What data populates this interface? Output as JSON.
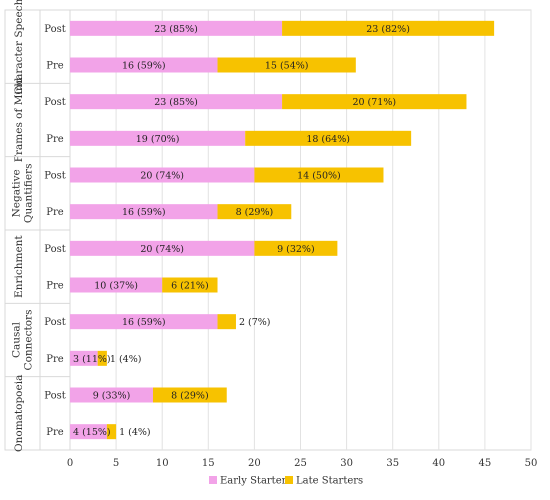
{
  "chart_data": {
    "type": "bar",
    "orientation": "horizontal",
    "stacked": true,
    "xlim": [
      0,
      50
    ],
    "xticks": [
      0,
      5,
      10,
      15,
      20,
      25,
      30,
      35,
      40,
      45,
      50
    ],
    "grid": true,
    "legend_position": "bottom",
    "colors": {
      "early": "#f2a3e8",
      "late": "#f7c200"
    },
    "groups": [
      {
        "name": "Character Speech",
        "rows": [
          {
            "label": "Post",
            "early": 23,
            "early_label": "23 (85%)",
            "late": 23,
            "late_label": "23 (82%)"
          },
          {
            "label": "Pre",
            "early": 16,
            "early_label": "16 (59%)",
            "late": 15,
            "late_label": "15 (54%)"
          }
        ]
      },
      {
        "name": "Frames of Mind",
        "rows": [
          {
            "label": "Post",
            "early": 23,
            "early_label": "23 (85%)",
            "late": 20,
            "late_label": "20 (71%)"
          },
          {
            "label": "Pre",
            "early": 19,
            "early_label": "19 (70%)",
            "late": 18,
            "late_label": "18 (64%)"
          }
        ]
      },
      {
        "name": "Negative Quantifiers",
        "rows": [
          {
            "label": "Post",
            "early": 20,
            "early_label": "20 (74%)",
            "late": 14,
            "late_label": "14 (50%)"
          },
          {
            "label": "Pre",
            "early": 16,
            "early_label": "16 (59%)",
            "late": 8,
            "late_label": "8 (29%)"
          }
        ]
      },
      {
        "name": "Enrichment",
        "rows": [
          {
            "label": "Post",
            "early": 20,
            "early_label": "20 (74%)",
            "late": 9,
            "late_label": "9 (32%)"
          },
          {
            "label": "Pre",
            "early": 10,
            "early_label": "10 (37%)",
            "late": 6,
            "late_label": "6 (21%)"
          }
        ]
      },
      {
        "name": "Causal Connectors",
        "rows": [
          {
            "label": "Post",
            "early": 16,
            "early_label": "16 (59%)",
            "late": 2,
            "late_label": "2 (7%)"
          },
          {
            "label": "Pre",
            "early": 3,
            "early_label": "3 (11%)",
            "late": 1,
            "late_label": "1 (4%)"
          }
        ]
      },
      {
        "name": "Onomatopoeia",
        "rows": [
          {
            "label": "Post",
            "early": 9,
            "early_label": "9 (33%)",
            "late": 8,
            "late_label": "8 (29%)"
          },
          {
            "label": "Pre",
            "early": 4,
            "early_label": "4 (15%)",
            "late": 1,
            "late_label": "1 (4%)"
          }
        ]
      }
    ],
    "series": [
      {
        "key": "early",
        "name": "Early Starters"
      },
      {
        "key": "late",
        "name": "Late Starters"
      }
    ]
  }
}
